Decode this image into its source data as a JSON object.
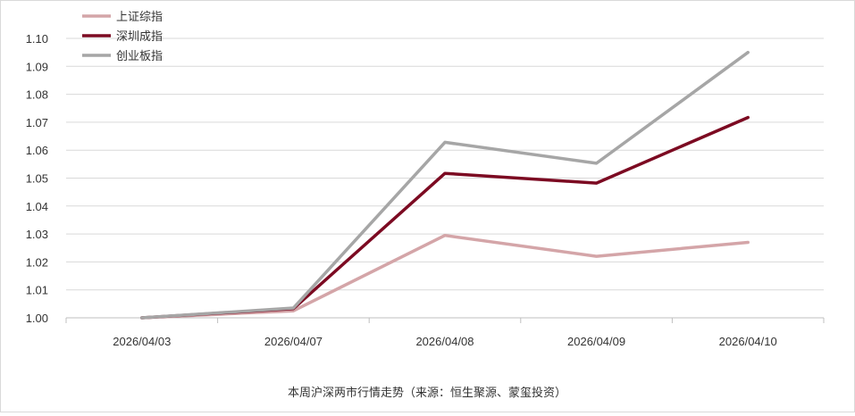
{
  "chart_data": {
    "type": "line",
    "title": "",
    "xlabel": "",
    "ylabel": "",
    "categories": [
      "2026/04/03",
      "2026/04/07",
      "2026/04/08",
      "2026/04/09",
      "2026/04/10"
    ],
    "yticks": [
      "1.00",
      "1.01",
      "1.02",
      "1.03",
      "1.04",
      "1.05",
      "1.06",
      "1.07",
      "1.08",
      "1.09",
      "1.10"
    ],
    "ylim": [
      1.0,
      1.1
    ],
    "grid": true,
    "legend_position": "top-left",
    "series": [
      {
        "name": "上证综指",
        "color": "#d4a5a8",
        "values": [
          1.0,
          1.0025,
          1.0295,
          1.022,
          1.027
        ]
      },
      {
        "name": "深圳成指",
        "color": "#7c0a22",
        "values": [
          1.0,
          1.0033,
          1.0517,
          1.0482,
          1.0717
        ]
      },
      {
        "name": "创业板指",
        "color": "#a6a6a6",
        "values": [
          1.0,
          1.0035,
          1.0628,
          1.0553,
          1.095
        ]
      }
    ],
    "caption": "本周沪深两市行情走势（来源：恒生聚源、蒙玺投资）"
  }
}
